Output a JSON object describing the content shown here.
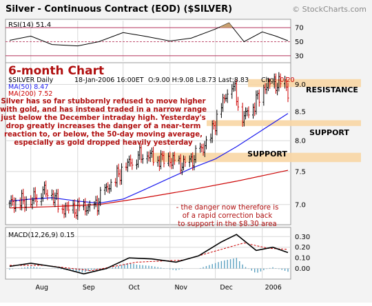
{
  "chart": {
    "title": "Silver - Continuous Contract (EOD) ($SILVER)",
    "watermark": "© StockCharts.com",
    "section_label": "6-month Chart",
    "price_header": {
      "symbol_line": "$SILVER Daily",
      "date": "18-Jan-2006 16:00ET",
      "ohlc": "O:9.00 H:9.08 L:8.73 Last:8.83",
      "chg_label": "Chg:",
      "chg_value": "-0.20"
    },
    "ma50_label": "MA(50) 8.47",
    "ma200_label": "MA(200) 7.52",
    "commentary": [
      "Silver has so far stubbornly refused to move higher",
      "with gold, and has instead traded in a narrow range",
      "just below the December intraday high. Yesterday's",
      "drop greatly increases the danger of a near-term",
      "reaction to, or below, the 50-day moving average,",
      "especially as gold dropped heavily yesterday"
    ],
    "danger_note": [
      "- the danger now therefore is",
      "of a rapid correction back",
      "to support in the $8.30 area"
    ],
    "zones": {
      "resistance": "RESISTANCE",
      "support_upper": "SUPPORT",
      "support_lower": "SUPPORT"
    },
    "rsi_label": "RSI(14) 51.4",
    "macd_label": "MACD(12,26,9) 0.15",
    "colors": {
      "price_up": "#000000",
      "price_down": "#cc0000",
      "ma50": "#1a1aee",
      "ma200": "#cc0000",
      "rsi": "#000000",
      "rsi_band": "#b4305a",
      "zone_fill": "#f8d6a4",
      "annotation": "#b01010",
      "title": "#b01010",
      "macd": "#000000",
      "signal": "#cc0000",
      "hist": "#5aa0c0"
    }
  },
  "chart_data": {
    "type": "line",
    "subtype": "ohlc-bars",
    "x_range": [
      "2005-07-18",
      "2006-01-18"
    ],
    "x_ticks": [
      "Aug",
      "Sep",
      "Oct",
      "Nov",
      "Dec",
      "2006"
    ],
    "price_panel": {
      "y_ticks": [
        7.0,
        7.5,
        8.0,
        8.5,
        9.0
      ],
      "y_scale": "log",
      "ylim": [
        6.75,
        9.35
      ],
      "series": [
        {
          "name": "$SILVER Daily",
          "points": [
            [
              "2005-07-18",
              7.02
            ],
            [
              "2005-07-25",
              7.05
            ],
            [
              "2005-08-01",
              7.05
            ],
            [
              "2005-08-08",
              7.22
            ],
            [
              "2005-08-15",
              7.15
            ],
            [
              "2005-08-22",
              6.95
            ],
            [
              "2005-08-29",
              6.92
            ],
            [
              "2005-09-05",
              6.95
            ],
            [
              "2005-09-12",
              6.95
            ],
            [
              "2005-09-19",
              7.2
            ],
            [
              "2005-09-26",
              7.4
            ],
            [
              "2005-10-03",
              7.6
            ],
            [
              "2005-10-10",
              7.75
            ],
            [
              "2005-10-17",
              7.78
            ],
            [
              "2005-10-24",
              7.7
            ],
            [
              "2005-10-31",
              7.7
            ],
            [
              "2005-11-07",
              7.6
            ],
            [
              "2005-11-14",
              7.65
            ],
            [
              "2005-11-21",
              7.8
            ],
            [
              "2005-11-28",
              8.1
            ],
            [
              "2005-12-05",
              8.6
            ],
            [
              "2005-12-12",
              9.05
            ],
            [
              "2005-12-19",
              8.4
            ],
            [
              "2005-12-26",
              8.6
            ],
            [
              "2006-01-02",
              8.95
            ],
            [
              "2006-01-09",
              9.0
            ],
            [
              "2006-01-16",
              9.03
            ],
            [
              "2006-01-18",
              8.83
            ]
          ]
        },
        {
          "name": "MA(50)",
          "points": [
            [
              "2005-07-18",
              7.05
            ],
            [
              "2005-08-01",
              7.08
            ],
            [
              "2005-08-15",
              7.1
            ],
            [
              "2005-09-01",
              7.05
            ],
            [
              "2005-09-15",
              7.02
            ],
            [
              "2005-10-01",
              7.08
            ],
            [
              "2005-10-15",
              7.22
            ],
            [
              "2005-11-01",
              7.4
            ],
            [
              "2005-11-15",
              7.55
            ],
            [
              "2005-12-01",
              7.7
            ],
            [
              "2005-12-15",
              7.9
            ],
            [
              "2006-01-01",
              8.18
            ],
            [
              "2006-01-18",
              8.47
            ]
          ]
        },
        {
          "name": "MA(200)",
          "points": [
            [
              "2005-07-18",
              6.95
            ],
            [
              "2005-08-15",
              6.97
            ],
            [
              "2005-09-15",
              7.0
            ],
            [
              "2005-10-15",
              7.1
            ],
            [
              "2005-11-15",
              7.22
            ],
            [
              "2005-12-15",
              7.35
            ],
            [
              "2006-01-18",
              7.52
            ]
          ]
        }
      ],
      "zones": [
        {
          "label": "RESISTANCE",
          "from": 8.95,
          "to": 9.1
        },
        {
          "label": "SUPPORT",
          "from": 8.25,
          "to": 8.35
        },
        {
          "label": "SUPPORT",
          "from": 7.65,
          "to": 7.8
        }
      ]
    },
    "rsi_panel": {
      "y_ticks": [
        30,
        50,
        70
      ],
      "ylim": [
        22,
        80
      ],
      "points": [
        [
          "2005-07-18",
          52
        ],
        [
          "2005-08-01",
          58
        ],
        [
          "2005-08-15",
          46
        ],
        [
          "2005-09-01",
          44
        ],
        [
          "2005-09-15",
          50
        ],
        [
          "2005-10-01",
          63
        ],
        [
          "2005-10-15",
          58
        ],
        [
          "2005-11-01",
          51
        ],
        [
          "2005-11-15",
          55
        ],
        [
          "2005-12-01",
          68
        ],
        [
          "2005-12-10",
          77
        ],
        [
          "2005-12-20",
          50
        ],
        [
          "2006-01-01",
          64
        ],
        [
          "2006-01-10",
          58
        ],
        [
          "2006-01-18",
          51.4
        ]
      ]
    },
    "macd_panel": {
      "y_ticks": [
        0.0,
        0.1,
        0.2,
        0.3
      ],
      "ylim": [
        -0.08,
        0.36
      ],
      "macd": [
        [
          "2005-07-18",
          0.02
        ],
        [
          "2005-08-01",
          0.05
        ],
        [
          "2005-08-20",
          0.01
        ],
        [
          "2005-09-05",
          -0.05
        ],
        [
          "2005-09-20",
          0.0
        ],
        [
          "2005-10-05",
          0.1
        ],
        [
          "2005-10-20",
          0.09
        ],
        [
          "2005-11-05",
          0.06
        ],
        [
          "2005-11-20",
          0.12
        ],
        [
          "2005-12-05",
          0.25
        ],
        [
          "2005-12-15",
          0.32
        ],
        [
          "2005-12-28",
          0.17
        ],
        [
          "2006-01-08",
          0.2
        ],
        [
          "2006-01-18",
          0.15
        ]
      ],
      "signal": [
        [
          "2005-07-18",
          0.03
        ],
        [
          "2005-08-10",
          0.03
        ],
        [
          "2005-09-10",
          -0.02
        ],
        [
          "2005-10-10",
          0.06
        ],
        [
          "2005-11-10",
          0.08
        ],
        [
          "2005-12-05",
          0.18
        ],
        [
          "2005-12-20",
          0.24
        ],
        [
          "2006-01-05",
          0.19
        ],
        [
          "2006-01-18",
          0.18
        ]
      ]
    }
  }
}
